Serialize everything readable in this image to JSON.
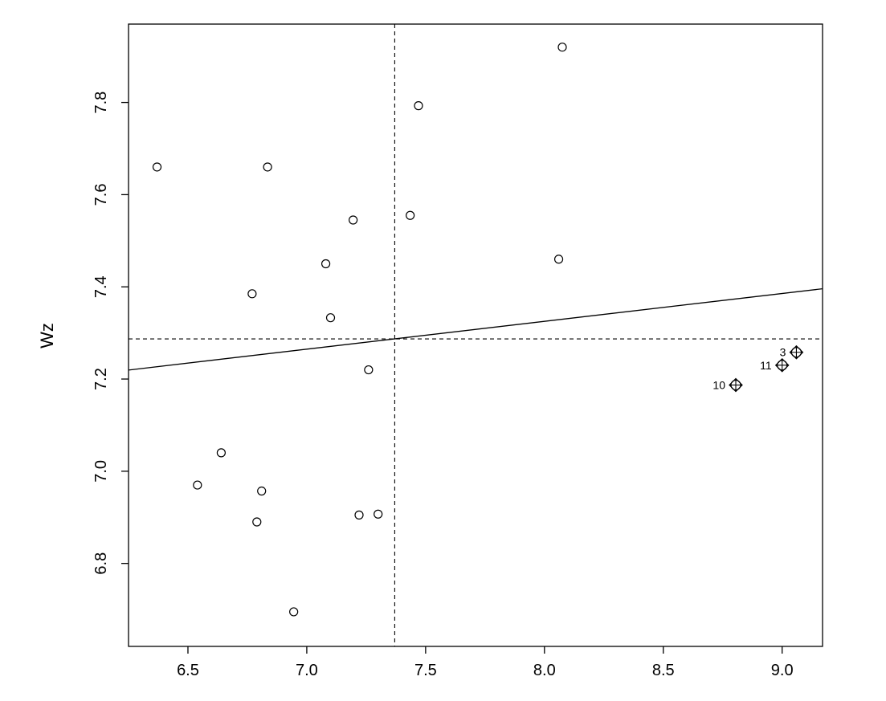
{
  "chart_data": {
    "type": "scatter",
    "title": "",
    "xlabel": "",
    "ylabel": "Wz",
    "xlim": [
      6.25,
      9.17
    ],
    "ylim": [
      6.62,
      7.97
    ],
    "xticks": [
      6.5,
      7.0,
      7.5,
      8.0,
      8.5,
      9.0
    ],
    "xtick_labels": [
      "6.5",
      "7.0",
      "7.5",
      "8.0",
      "8.5",
      "9.0"
    ],
    "yticks": [
      6.8,
      7.0,
      7.2,
      7.4,
      7.6,
      7.8
    ],
    "ytick_labels": [
      "6.8",
      "7.0",
      "7.2",
      "7.4",
      "7.6",
      "7.8"
    ],
    "grid": false,
    "mean_x": 7.37,
    "mean_y": 7.287,
    "regression_line": {
      "intercept": 6.842,
      "slope": 0.0604
    },
    "points": [
      {
        "x": 6.37,
        "y": 7.66
      },
      {
        "x": 6.54,
        "y": 6.97
      },
      {
        "x": 6.64,
        "y": 7.04
      },
      {
        "x": 6.77,
        "y": 7.385
      },
      {
        "x": 6.79,
        "y": 6.89
      },
      {
        "x": 6.81,
        "y": 6.957
      },
      {
        "x": 6.835,
        "y": 7.66
      },
      {
        "x": 6.945,
        "y": 6.695
      },
      {
        "x": 7.08,
        "y": 7.45
      },
      {
        "x": 7.1,
        "y": 7.333
      },
      {
        "x": 7.195,
        "y": 7.545
      },
      {
        "x": 7.22,
        "y": 6.905
      },
      {
        "x": 7.26,
        "y": 7.22
      },
      {
        "x": 7.3,
        "y": 6.907
      },
      {
        "x": 7.435,
        "y": 7.555
      },
      {
        "x": 7.47,
        "y": 7.793
      },
      {
        "x": 8.06,
        "y": 7.46
      },
      {
        "x": 8.075,
        "y": 7.92
      }
    ],
    "highlighted_points": [
      {
        "x": 8.805,
        "y": 7.187,
        "label": "10"
      },
      {
        "x": 9.0,
        "y": 7.23,
        "label": "11"
      },
      {
        "x": 9.06,
        "y": 7.258,
        "label": "3"
      }
    ]
  }
}
